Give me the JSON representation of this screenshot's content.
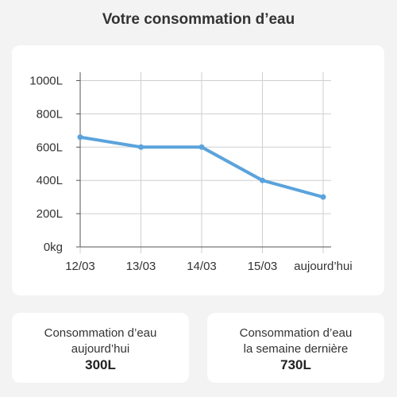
{
  "header": {
    "title": "Votre consommation d’eau"
  },
  "colors": {
    "line": "#5ba3dc",
    "grid": "#cfcfcf",
    "card": "#ffffff",
    "background": "#f3f3f3"
  },
  "chart_data": {
    "type": "line",
    "x": [
      "12/03",
      "13/03",
      "14/03",
      "15/03",
      "aujourd’hui"
    ],
    "series": [
      {
        "values": [
          660,
          600,
          600,
          400,
          300
        ]
      }
    ],
    "y_tick_labels": [
      "0kg",
      "200L",
      "400L",
      "600L",
      "800L",
      "1000L"
    ],
    "y_ticks": [
      0,
      200,
      400,
      600,
      800,
      1000
    ],
    "ylim": [
      0,
      1050
    ],
    "grid": true
  },
  "stats": {
    "today": {
      "label_line1": "Consommation d’eau",
      "label_line2": "aujourd’hui",
      "value": "300L"
    },
    "last_week": {
      "label_line1": "Consommation d’eau",
      "label_line2": "la semaine dernière",
      "value": "730L"
    }
  }
}
